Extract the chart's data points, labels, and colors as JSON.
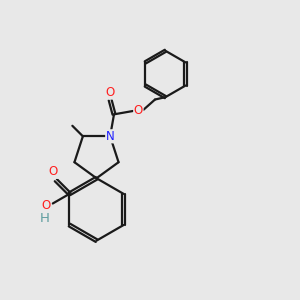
{
  "bg": "#e8e8e8",
  "bc": "#1a1a1a",
  "Nc": "#2020ff",
  "Oc": "#ff2020",
  "Hc": "#5f9ea0",
  "fs": 8.5,
  "lw": 1.6,
  "sep": 0.055,
  "xlim": [
    0,
    10
  ],
  "ylim": [
    0,
    10
  ]
}
